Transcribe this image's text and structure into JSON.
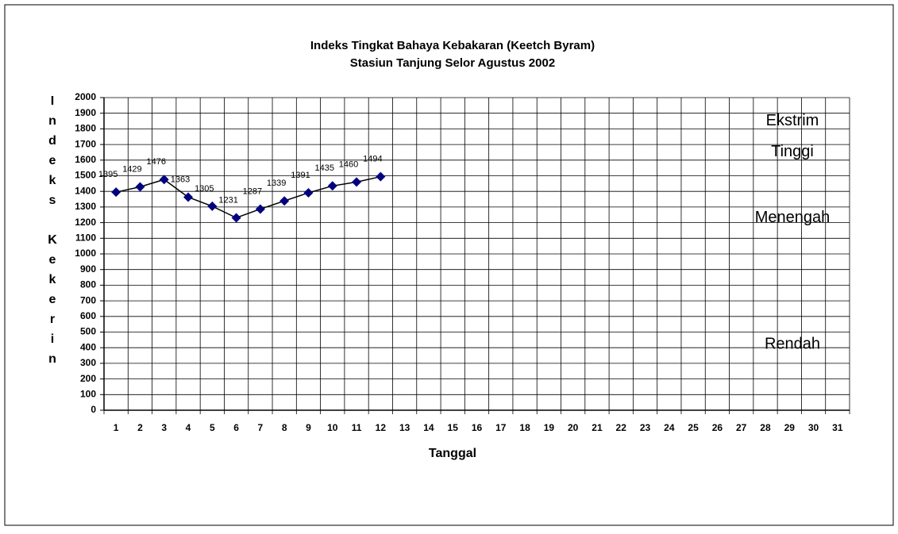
{
  "chart_data": {
    "type": "line",
    "title": "Indeks Tingkat Bahaya Kebakaran (Keetch Byram)",
    "subtitle": "Stasiun Tanjung Selor Agustus 2002",
    "x_label": "Tanggal",
    "y_label": "Indeks Kekerin",
    "categories": [
      "1",
      "2",
      "3",
      "4",
      "5",
      "6",
      "7",
      "8",
      "9",
      "10",
      "11",
      "12",
      "13",
      "14",
      "15",
      "16",
      "17",
      "18",
      "19",
      "20",
      "21",
      "22",
      "23",
      "24",
      "25",
      "26",
      "27",
      "28",
      "29",
      "30",
      "31"
    ],
    "series": [
      {
        "name": "Indeks",
        "color": "#000080",
        "values": [
          1395,
          1429,
          1476,
          1363,
          1305,
          1231,
          1287,
          1339,
          1391,
          1435,
          1460,
          1494,
          null,
          null,
          null,
          null,
          null,
          null,
          null,
          null,
          null,
          null,
          null,
          null,
          null,
          null,
          null,
          null,
          null,
          null,
          null
        ]
      }
    ],
    "ylim": [
      0,
      2000
    ],
    "yticks": [
      0,
      100,
      200,
      300,
      400,
      500,
      600,
      700,
      800,
      900,
      1000,
      1100,
      1200,
      1300,
      1400,
      1500,
      1600,
      1700,
      1800,
      1900,
      2000
    ],
    "grid": true,
    "annotations": [
      {
        "text": "Ekstrim",
        "y": 1850
      },
      {
        "text": "Tinggi",
        "y": 1650
      },
      {
        "text": "Menengah",
        "y": 1230
      },
      {
        "text": "Rendah",
        "y": 420
      }
    ]
  }
}
